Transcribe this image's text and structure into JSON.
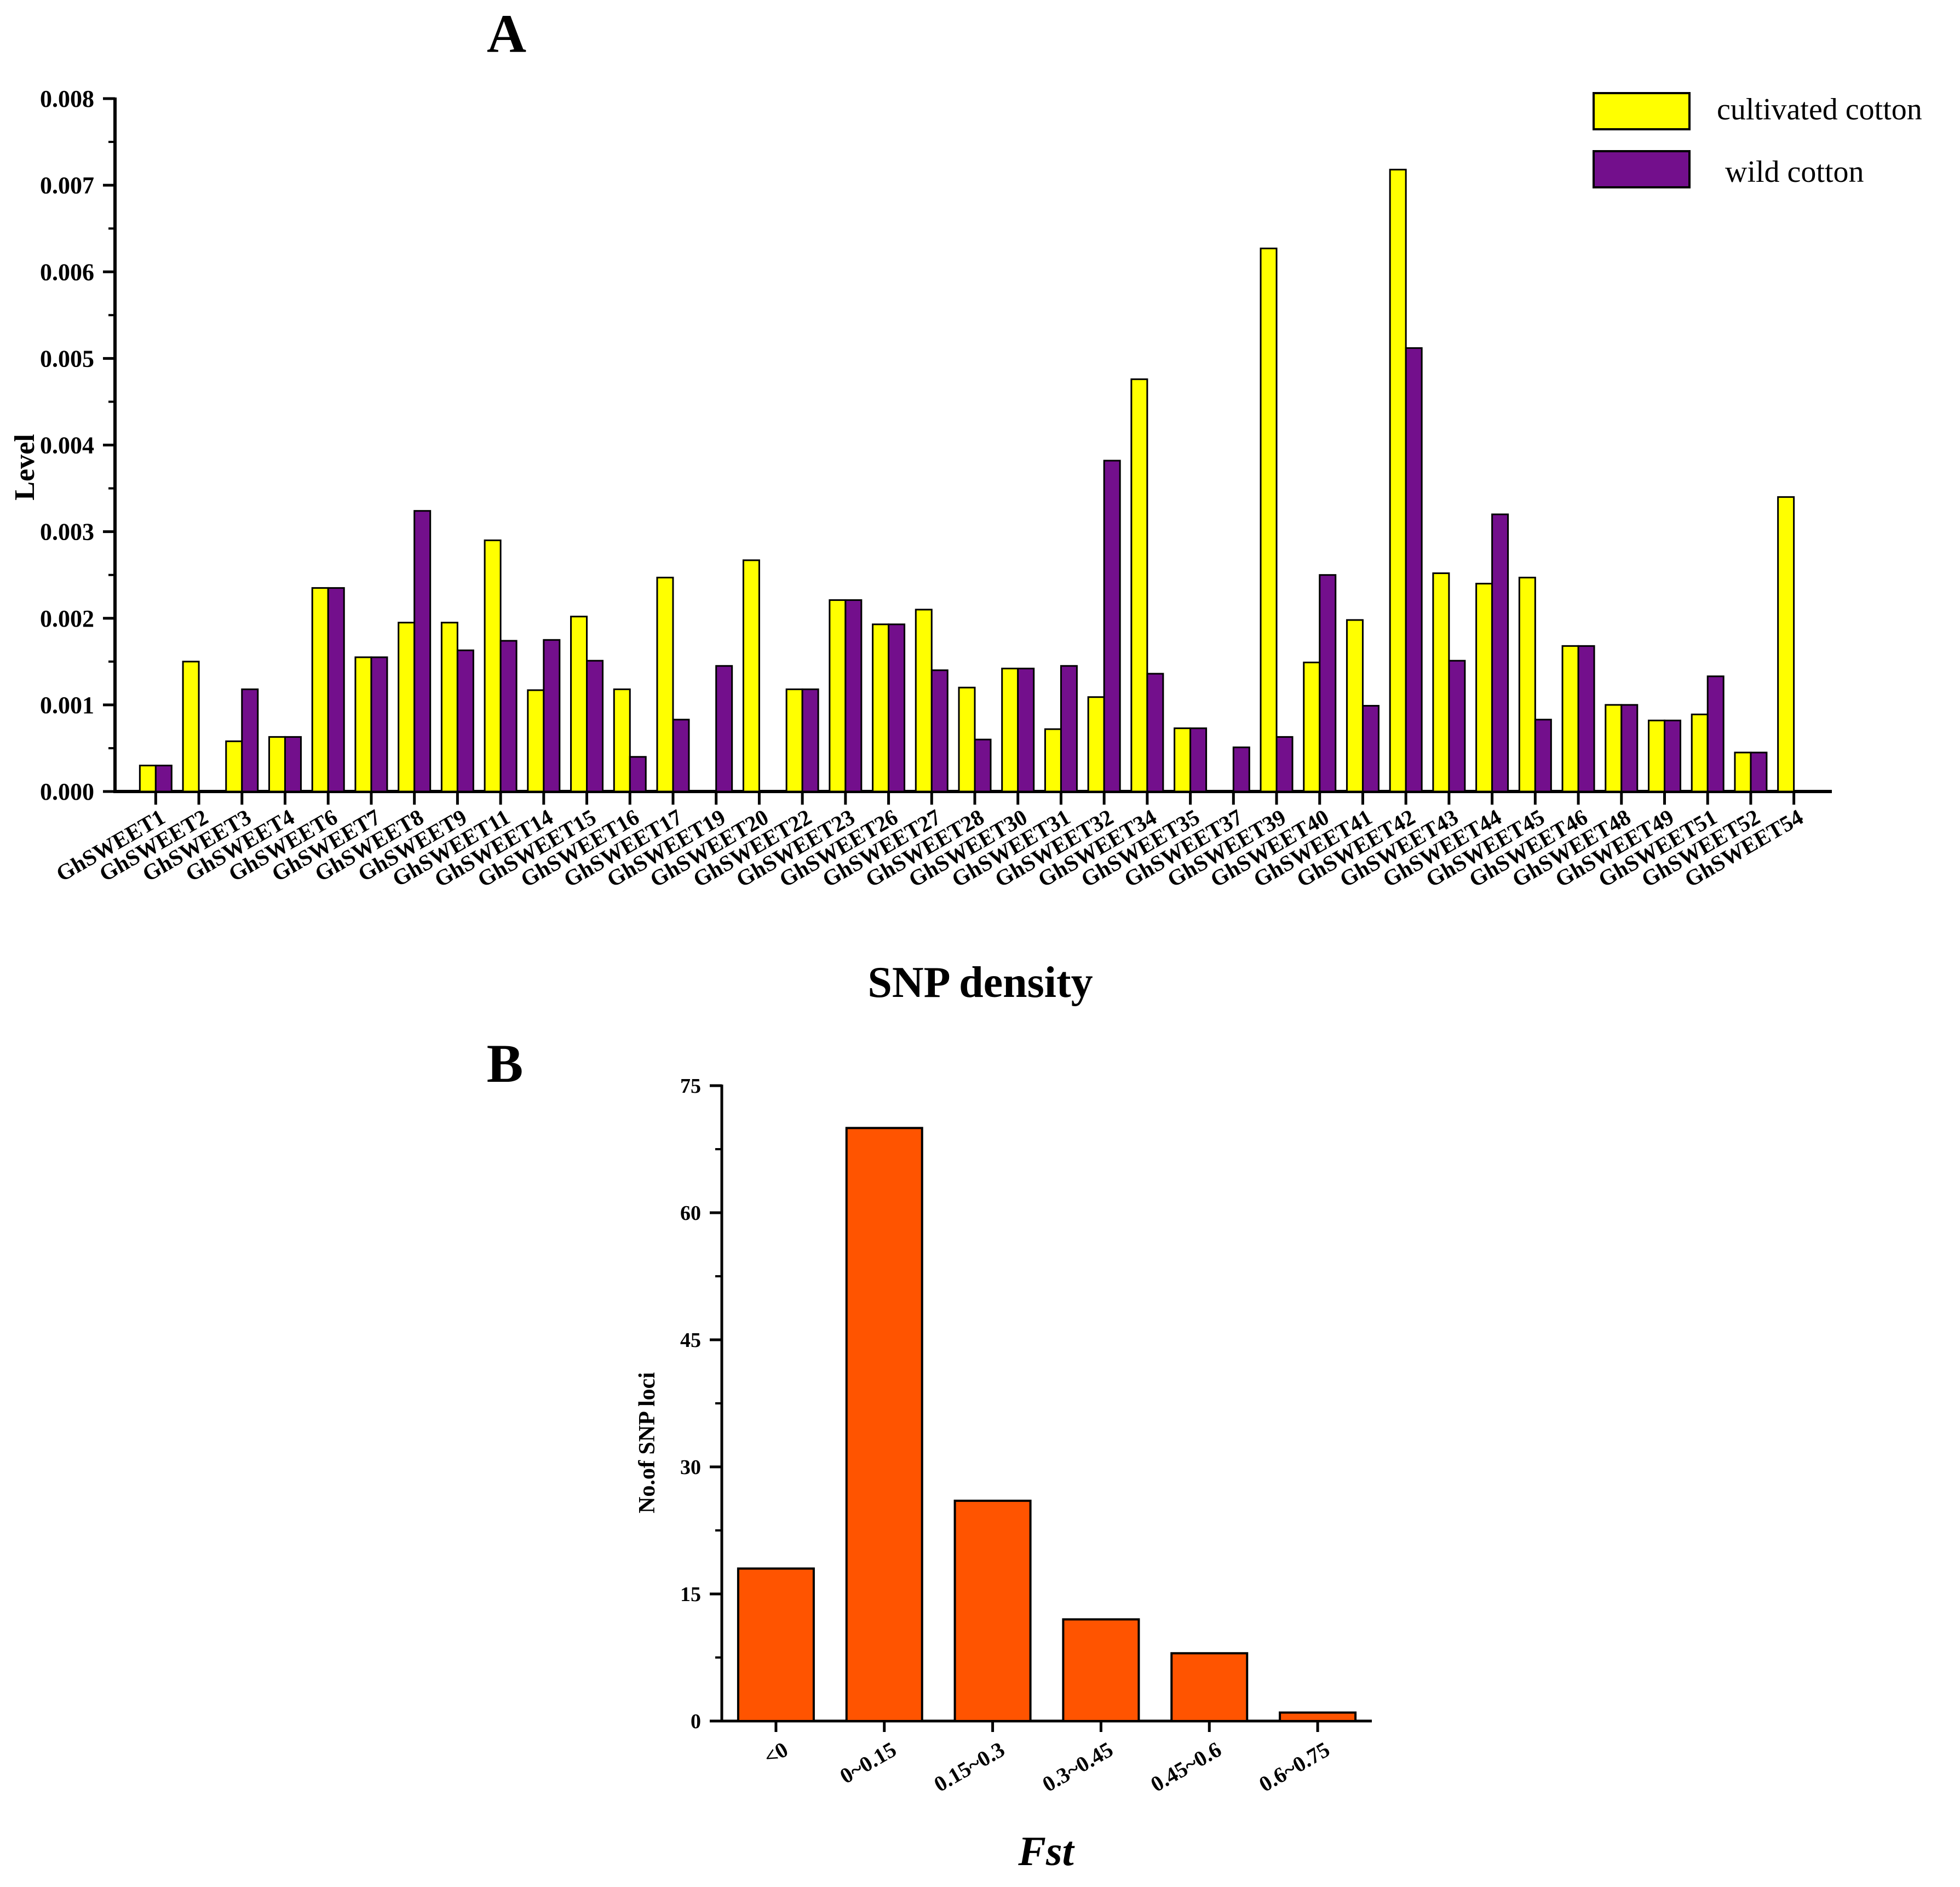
{
  "chart_data": [
    {
      "panel_label": "A",
      "type": "bar",
      "title": "SNP density",
      "xlabel": "SNP density",
      "ylabel": "Level",
      "ylim": [
        0,
        0.008
      ],
      "yticks": [
        "0.000",
        "0.001",
        "0.002",
        "0.003",
        "0.004",
        "0.005",
        "0.006",
        "0.007",
        "0.008"
      ],
      "legend_position": "top-right",
      "categories": [
        "GhSWEET1",
        "GhSWEET2",
        "GhSWEET3",
        "GhSWEET4",
        "GhSWEET6",
        "GhSWEET7",
        "GhSWEET8",
        "GhSWEET9",
        "GhSWEET11",
        "GhSWEET14",
        "GhSWEET15",
        "GhSWEET16",
        "GhSWEET17",
        "GhSWEET19",
        "GhSWEET20",
        "GhSWEET22",
        "GhSWEET23",
        "GhSWEET26",
        "GhSWEET27",
        "GhSWEET28",
        "GhSWEET30",
        "GhSWEET31",
        "GhSWEET32",
        "GhSWEET34",
        "GhSWEET35",
        "GhSWEET37",
        "GhSWEET39",
        "GhSWEET40",
        "GhSWEET41",
        "GhSWEET42",
        "GhSWEET43",
        "GhSWEET44",
        "GhSWEET45",
        "GhSWEET46",
        "GhSWEET48",
        "GhSWEET49",
        "GhSWEET51",
        "GhSWEET52",
        "GhSWEET54"
      ],
      "series": [
        {
          "name": "cultivated cotton",
          "color": "#FFFF00",
          "values": [
            0.0003,
            0.0015,
            0.00058,
            0.00063,
            0.00235,
            0.00155,
            0.00195,
            0.00195,
            0.0029,
            0.00117,
            0.00202,
            0.00118,
            0.00247,
            0,
            0.00267,
            0.00118,
            0.00221,
            0.00193,
            0.0021,
            0.0012,
            0.00142,
            0.00072,
            0.00109,
            0.00476,
            0.00073,
            0,
            0.00627,
            0.00149,
            0.00198,
            0.00718,
            0.00252,
            0.0024,
            0.00247,
            0.00168,
            0.001,
            0.00082,
            0.00089,
            0.00045,
            0.0034
          ]
        },
        {
          "name": "wild cotton",
          "color": "#730F8C",
          "values": [
            0.0003,
            0,
            0.00118,
            0.00063,
            0.00235,
            0.00155,
            0.00324,
            0.00163,
            0.00174,
            0.00175,
            0.00151,
            0.0004,
            0.00083,
            0.00145,
            0,
            0.00118,
            0.00221,
            0.00193,
            0.0014,
            0.0006,
            0.00142,
            0.00145,
            0.00382,
            0.00136,
            0.00073,
            0.00051,
            0.00063,
            0.0025,
            0.00099,
            0.00512,
            0.00151,
            0.0032,
            0.00083,
            0.00168,
            0.001,
            0.00082,
            0.00133,
            0.00045,
            0
          ]
        }
      ]
    },
    {
      "panel_label": "B",
      "type": "bar",
      "title": "",
      "xlabel": "Fst",
      "ylabel": "No.of SNP loci",
      "ylim": [
        0,
        75
      ],
      "yticks": [
        "0",
        "15",
        "30",
        "45",
        "60",
        "75"
      ],
      "categories": [
        "<0",
        "0~0.15",
        "0.15~0.3",
        "0.3~0.45",
        "0.45~0.6",
        "0.6~0.75"
      ],
      "values": [
        18,
        70,
        26,
        12,
        8,
        1
      ],
      "color": "#FF5400"
    }
  ]
}
